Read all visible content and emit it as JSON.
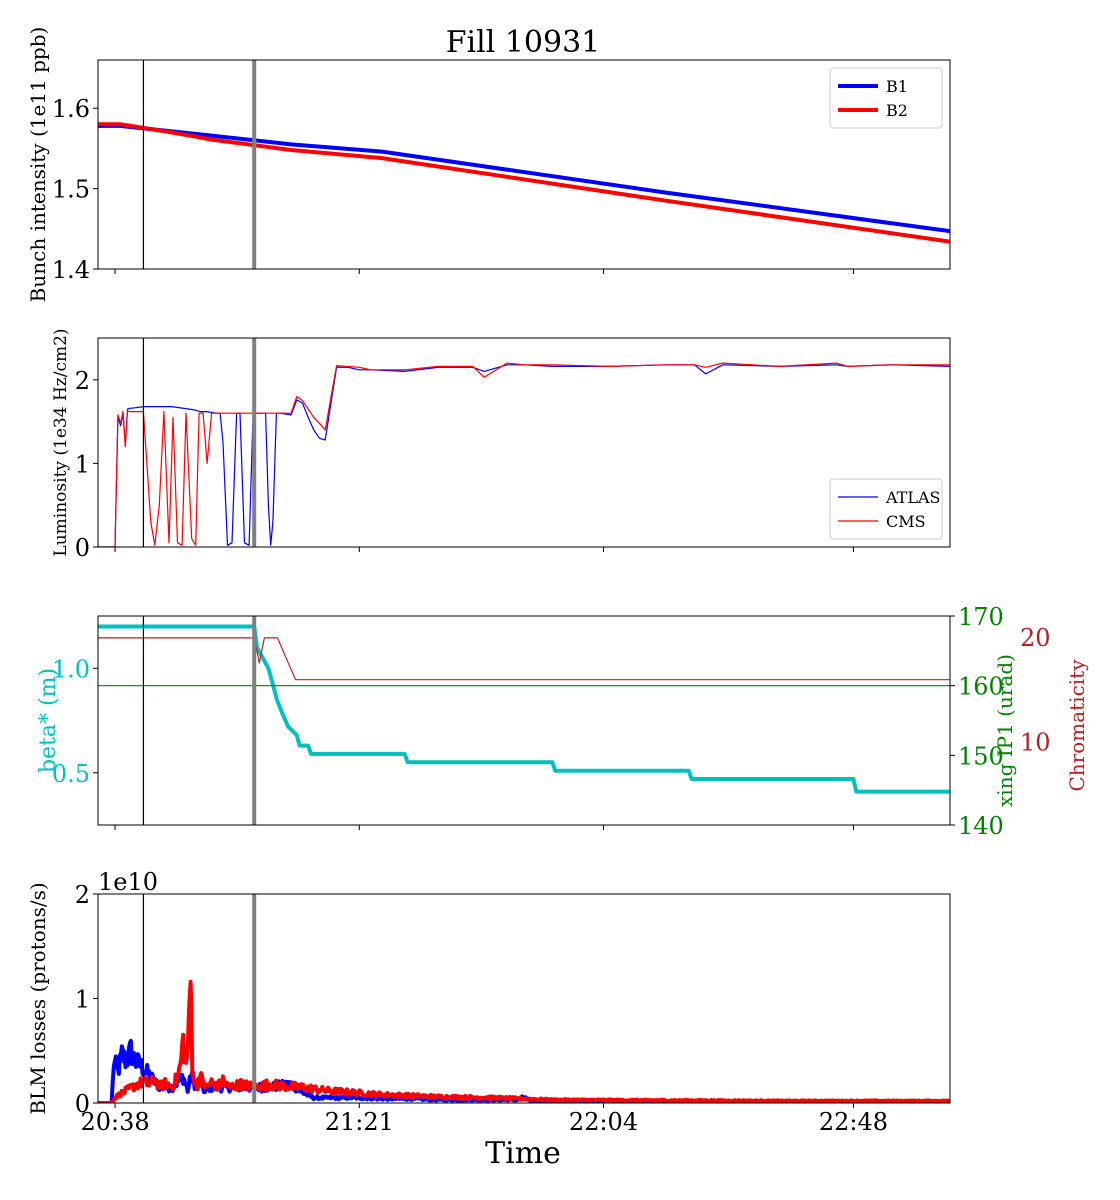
{
  "title": "Fill 10931",
  "xlabel": "Time",
  "colors": {
    "B1": "#0000ff",
    "B2": "#ff0000",
    "ATLAS": "#0000ff",
    "CMS": "#ff0000",
    "beta": "#00bfbf",
    "xing": "#008000",
    "chroma": "#b22222",
    "marker_thin": "#000000",
    "marker_thick": "#808080"
  },
  "chart_data": [
    {
      "type": "line",
      "ylabel": "Bunch intensity (1e11 ppb)",
      "ylim": [
        1.4,
        1.66
      ],
      "yticks": [
        1.4,
        1.5,
        1.6
      ],
      "ytick_labels": [
        "1.4",
        "1.5",
        "1.6"
      ],
      "legend": "top-right",
      "series": [
        {
          "name": "B1",
          "color": "#0000ff",
          "width": 4,
          "x": [
            0,
            4,
            20,
            34,
            50,
            100,
            150
          ],
          "y": [
            1.578,
            1.578,
            1.566,
            1.555,
            1.546,
            1.495,
            1.447
          ]
        },
        {
          "name": "B2",
          "color": "#ff0000",
          "width": 4,
          "x": [
            0,
            4,
            12,
            17,
            20,
            34,
            50,
            100,
            150
          ],
          "y": [
            1.58,
            1.58,
            1.571,
            1.565,
            1.561,
            1.548,
            1.538,
            1.485,
            1.434
          ]
        }
      ]
    },
    {
      "type": "line",
      "ylabel": "Luminosity (1e34 Hz/cm2)",
      "ylim": [
        0,
        2.5
      ],
      "yticks": [
        0,
        1,
        2
      ],
      "ytick_labels": [
        "0",
        "1",
        "2"
      ],
      "legend": "bottom-right",
      "series": [
        {
          "name": "ATLAS",
          "color": "#0000ff",
          "width": 1.2,
          "x": [
            0,
            3,
            3.5,
            4,
            4.4,
            4.8,
            5.2,
            5.6,
            6,
            8,
            13,
            17,
            18,
            19,
            20,
            20.8,
            21.5,
            22,
            22.8,
            23.6,
            24.4,
            25,
            25.8,
            26.6,
            27.3,
            28,
            29.5,
            30,
            30.4,
            30.8,
            31.4,
            32,
            34,
            35,
            36,
            37,
            38,
            39,
            40,
            42,
            44,
            46,
            48,
            54,
            60,
            66,
            68,
            72,
            75,
            80,
            90,
            100,
            105,
            107,
            110,
            120,
            130,
            132,
            140,
            150
          ],
          "y": [
            0,
            0,
            1.55,
            1.45,
            1.6,
            1.22,
            1.65,
            1.66,
            1.66,
            1.68,
            1.68,
            1.64,
            1.62,
            1.62,
            1.61,
            1.6,
            1.6,
            1.25,
            0.02,
            0.05,
            1.6,
            1.6,
            0.05,
            0.02,
            1.6,
            1.6,
            1.6,
            0.5,
            0.02,
            0.3,
            1.6,
            1.6,
            1.58,
            1.76,
            1.72,
            1.55,
            1.4,
            1.3,
            1.28,
            2.15,
            2.15,
            2.12,
            2.12,
            2.1,
            2.15,
            2.15,
            2.1,
            2.18,
            2.18,
            2.16,
            2.16,
            2.18,
            2.18,
            2.07,
            2.18,
            2.16,
            2.18,
            2.16,
            2.18,
            2.16
          ]
        },
        {
          "name": "CMS",
          "color": "#ff0000",
          "width": 1.2,
          "x": [
            0,
            3,
            3.5,
            4,
            4.4,
            4.8,
            5.2,
            5.6,
            6,
            8,
            9.3,
            10,
            10.8,
            11.6,
            12.5,
            13.2,
            14,
            14.8,
            15.5,
            16.5,
            17.2,
            17.8,
            18.5,
            19.2,
            20,
            21,
            25,
            34,
            35,
            36,
            37,
            38,
            39,
            40,
            42,
            46,
            48,
            54,
            60,
            66,
            68,
            72,
            75,
            80,
            90,
            100,
            105,
            107,
            110,
            120,
            130,
            132,
            140,
            150
          ],
          "y": [
            0,
            0,
            1.58,
            1.48,
            1.62,
            1.2,
            1.63,
            1.62,
            1.62,
            1.62,
            0.3,
            0.02,
            0.5,
            1.62,
            0.05,
            1.55,
            0.05,
            0.02,
            1.6,
            0.1,
            0.02,
            1.6,
            1.6,
            1.0,
            1.6,
            1.6,
            1.6,
            1.6,
            1.8,
            1.75,
            1.65,
            1.55,
            1.48,
            1.4,
            2.17,
            2.15,
            2.12,
            2.12,
            2.16,
            2.16,
            2.03,
            2.2,
            2.18,
            2.18,
            2.16,
            2.18,
            2.18,
            2.15,
            2.2,
            2.16,
            2.2,
            2.16,
            2.18,
            2.18
          ]
        }
      ]
    },
    {
      "type": "line",
      "ylabel": "beta* (m)",
      "ylim": [
        0.25,
        1.25
      ],
      "yticks": [
        0.5,
        1.0
      ],
      "ytick_labels": [
        "0.5",
        "1.0"
      ],
      "right_axes": [
        {
          "label": "xing IP1 (urad)",
          "color": "#008000",
          "ylim": [
            140,
            170
          ],
          "yticks": [
            140,
            150,
            160,
            170
          ],
          "ytick_labels": [
            "140",
            "150",
            "160",
            "170"
          ]
        },
        {
          "label": "Chromaticity",
          "color": "#b22222",
          "ylim": [
            2,
            22
          ],
          "yticks": [
            10,
            20
          ],
          "ytick_labels": [
            "10",
            "20"
          ]
        }
      ],
      "series": [
        {
          "name": "beta*",
          "axis": "left",
          "color": "#00bfbf",
          "width": 4,
          "x": [
            0,
            27.5,
            28,
            30,
            31,
            31.5,
            32.5,
            33.5,
            35,
            35.5,
            36,
            37,
            37.5,
            38,
            39,
            40,
            54,
            54.5,
            80,
            80.5,
            104,
            104.5,
            133,
            133.5,
            150
          ],
          "y": [
            1.2,
            1.2,
            1.1,
            1.0,
            0.9,
            0.85,
            0.78,
            0.72,
            0.68,
            0.63,
            0.63,
            0.63,
            0.59,
            0.59,
            0.59,
            0.59,
            0.59,
            0.55,
            0.55,
            0.51,
            0.51,
            0.47,
            0.47,
            0.41,
            0.41
          ]
        },
        {
          "name": "xing IP1",
          "axis": "right1",
          "color": "#008000",
          "width": 1.2,
          "x": [
            0,
            150
          ],
          "y": [
            160,
            160
          ]
        },
        {
          "name": "Chromaticity",
          "axis": "right2",
          "color": "#b22222",
          "width": 1.2,
          "x": [
            0,
            27.5,
            28.4,
            29.3,
            31.6,
            33.9,
            34.8,
            150
          ],
          "y": [
            19.9,
            19.9,
            17.5,
            19.9,
            19.9,
            17,
            15.9,
            15.9
          ]
        }
      ]
    },
    {
      "type": "line",
      "ylabel": "BLM losses (protons/s)",
      "offset_text": "1e10",
      "ylim": [
        0,
        20000000000
      ],
      "yticks": [
        0,
        10000000000,
        20000000000
      ],
      "ytick_labels": [
        "0",
        "1",
        "2"
      ],
      "series": [
        {
          "name": "B1",
          "color": "#0000ff",
          "width": 4,
          "noise": true,
          "x": [
            0,
            2.4,
            2.8,
            3.5,
            4.2,
            5,
            5.8,
            6.5,
            7.5,
            8.5,
            10,
            11,
            13,
            15,
            15.8,
            16.5,
            17.2,
            18,
            18.8,
            19.5,
            20.5,
            22,
            25,
            30,
            34,
            36,
            38,
            40,
            45,
            50,
            55,
            60,
            65,
            70,
            74,
            75,
            76,
            85,
            100,
            120,
            150
          ],
          "y": [
            0,
            0,
            4000000000,
            3000000000,
            4600000000,
            4000000000,
            5000000000,
            4000000000,
            3600000000,
            3000000000,
            2000000000,
            1500000000,
            1500000000,
            2500000000,
            1200000000,
            2800000000,
            1500000000,
            2300000000,
            1000000000,
            1500000000,
            1500000000,
            1500000000,
            1500000000,
            1500000000,
            1800000000,
            1000000000,
            500000000,
            500000000,
            500000000,
            400000000,
            400000000,
            300000000,
            300000000,
            300000000,
            300000000,
            600000000,
            200000000,
            200000000,
            150000000,
            150000000,
            150000000
          ]
        },
        {
          "name": "B2",
          "color": "#ff0000",
          "width": 4,
          "noise": true,
          "x": [
            0,
            2.4,
            3,
            4,
            5,
            6,
            7,
            8,
            9,
            10,
            11,
            12,
            13,
            14,
            14.5,
            15,
            15.5,
            16,
            16.3,
            16.6,
            17,
            17.4,
            18,
            19,
            20,
            21,
            22,
            23,
            25,
            28,
            30,
            33,
            36,
            40,
            45,
            50,
            60,
            70,
            80,
            100,
            120,
            150
          ],
          "y": [
            0,
            0,
            500000000,
            900000000,
            1200000000,
            1500000000,
            1800000000,
            2000000000,
            1800000000,
            2200000000,
            1600000000,
            1900000000,
            1500000000,
            2500000000,
            3500000000,
            6000000000,
            3500000000,
            7000000000,
            12000000000,
            4000000000,
            2000000000,
            1500000000,
            2500000000,
            1500000000,
            2000000000,
            1500000000,
            2200000000,
            1500000000,
            1800000000,
            1500000000,
            1800000000,
            1600000000,
            1500000000,
            1200000000,
            1000000000,
            800000000,
            600000000,
            500000000,
            300000000,
            250000000,
            200000000,
            200000000
          ]
        }
      ]
    }
  ],
  "shared_x": {
    "range_minutes": [
      0,
      150
    ],
    "ticks_minutes": [
      3,
      46,
      89,
      133
    ],
    "tick_labels": [
      "20:38",
      "21:21",
      "22:04",
      "22:48"
    ],
    "marker_thin_minutes": 8,
    "marker_thick_minutes": 27.5
  }
}
